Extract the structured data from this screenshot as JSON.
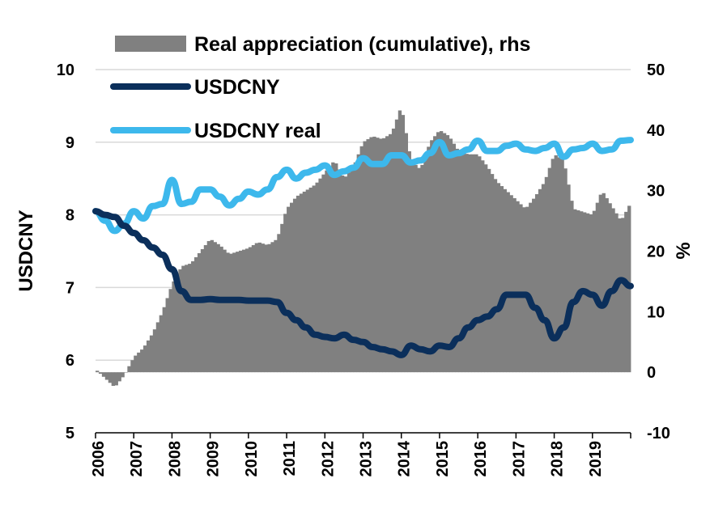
{
  "chart_data": {
    "type": "bar+line",
    "title": "",
    "x_ticks": [
      "2006",
      "2007",
      "2008",
      "2009",
      "2010",
      "2011",
      "2012",
      "2013",
      "2014",
      "2015",
      "2016",
      "2017",
      "2018",
      "2019"
    ],
    "x_range": [
      2006.0,
      2020.0
    ],
    "ylabel_left": "USDCNY",
    "ylabel_right": "%",
    "ylim_left": [
      5,
      10
    ],
    "ylim_right": [
      -10,
      50
    ],
    "yticks_left": [
      "5",
      "6",
      "7",
      "8",
      "9",
      "10"
    ],
    "yticks_right": [
      "-10",
      "0",
      "10",
      "20",
      "30",
      "40",
      "50"
    ],
    "grid": "horizontal",
    "legend_position": "top",
    "colors": {
      "bars": "#808080",
      "usdcny": "#0b2f5b",
      "usdcny_real": "#3db8ec"
    },
    "series": [
      {
        "name": "Real appreciation (cumulative), rhs",
        "kind": "bar",
        "axis": "right",
        "x": [
          2006.0,
          2006.25,
          2006.5,
          2006.75,
          2007.0,
          2007.25,
          2007.5,
          2007.75,
          2008.0,
          2008.25,
          2008.5,
          2008.75,
          2009.0,
          2009.25,
          2009.5,
          2009.75,
          2010.0,
          2010.25,
          2010.5,
          2010.75,
          2011.0,
          2011.25,
          2011.5,
          2011.75,
          2012.0,
          2012.25,
          2012.5,
          2012.75,
          2013.0,
          2013.25,
          2013.5,
          2013.75,
          2014.0,
          2014.25,
          2014.5,
          2014.75,
          2015.0,
          2015.25,
          2015.5,
          2015.75,
          2016.0,
          2016.25,
          2016.5,
          2016.75,
          2017.0,
          2017.25,
          2017.5,
          2017.75,
          2018.0,
          2018.25,
          2018.5,
          2018.75,
          2019.0,
          2019.25,
          2019.5,
          2019.75,
          2020.0
        ],
        "y": [
          0.5,
          -1.0,
          -2.5,
          -0.5,
          2.5,
          4.0,
          6.5,
          10.0,
          14.5,
          17.5,
          18.0,
          20.0,
          22.0,
          21.0,
          19.5,
          20.0,
          20.5,
          21.5,
          21.0,
          22.0,
          27.0,
          29.0,
          30.0,
          31.0,
          33.0,
          35.0,
          32.0,
          34.0,
          38.0,
          39.0,
          38.5,
          39.5,
          44.0,
          35.0,
          33.5,
          38.0,
          40.0,
          39.0,
          36.5,
          36.0,
          36.0,
          34.0,
          31.5,
          30.0,
          28.5,
          27.0,
          29.0,
          31.5,
          36.0,
          35.0,
          27.0,
          26.5,
          26.0,
          30.0,
          27.5,
          25.0,
          28.0
        ]
      },
      {
        "name": "USDCNY",
        "kind": "line",
        "axis": "left",
        "x": [
          2006.0,
          2006.25,
          2006.5,
          2006.75,
          2007.0,
          2007.25,
          2007.5,
          2007.75,
          2008.0,
          2008.25,
          2008.5,
          2008.75,
          2009.0,
          2009.25,
          2009.5,
          2009.75,
          2010.0,
          2010.25,
          2010.5,
          2010.75,
          2011.0,
          2011.25,
          2011.5,
          2011.75,
          2012.0,
          2012.25,
          2012.5,
          2012.75,
          2013.0,
          2013.25,
          2013.5,
          2013.75,
          2014.0,
          2014.25,
          2014.5,
          2014.75,
          2015.0,
          2015.25,
          2015.5,
          2015.75,
          2016.0,
          2016.25,
          2016.5,
          2016.75,
          2017.0,
          2017.25,
          2017.5,
          2017.75,
          2018.0,
          2018.25,
          2018.5,
          2018.75,
          2019.0,
          2019.25,
          2019.5,
          2019.75,
          2020.0
        ],
        "y": [
          8.05,
          8.0,
          7.97,
          7.85,
          7.75,
          7.65,
          7.55,
          7.45,
          7.25,
          6.95,
          6.83,
          6.83,
          6.84,
          6.83,
          6.83,
          6.83,
          6.82,
          6.82,
          6.82,
          6.8,
          6.65,
          6.55,
          6.45,
          6.35,
          6.32,
          6.3,
          6.35,
          6.28,
          6.25,
          6.18,
          6.15,
          6.12,
          6.07,
          6.2,
          6.15,
          6.12,
          6.2,
          6.18,
          6.3,
          6.45,
          6.55,
          6.6,
          6.7,
          6.9,
          6.9,
          6.9,
          6.72,
          6.55,
          6.3,
          6.45,
          6.8,
          6.95,
          6.9,
          6.75,
          6.95,
          7.1,
          7.02
        ]
      },
      {
        "name": "USDCNY real",
        "kind": "line",
        "axis": "left",
        "x": [
          2006.0,
          2006.25,
          2006.5,
          2006.75,
          2007.0,
          2007.25,
          2007.5,
          2007.75,
          2008.0,
          2008.25,
          2008.5,
          2008.75,
          2009.0,
          2009.25,
          2009.5,
          2009.75,
          2010.0,
          2010.25,
          2010.5,
          2010.75,
          2011.0,
          2011.25,
          2011.5,
          2011.75,
          2012.0,
          2012.25,
          2012.5,
          2012.75,
          2013.0,
          2013.25,
          2013.5,
          2013.75,
          2014.0,
          2014.25,
          2014.5,
          2014.75,
          2015.0,
          2015.25,
          2015.5,
          2015.75,
          2016.0,
          2016.25,
          2016.5,
          2016.75,
          2017.0,
          2017.25,
          2017.5,
          2017.75,
          2018.0,
          2018.25,
          2018.5,
          2018.75,
          2019.0,
          2019.25,
          2019.5,
          2019.75,
          2020.0
        ],
        "y": [
          8.05,
          7.92,
          7.78,
          7.88,
          8.05,
          7.95,
          8.12,
          8.15,
          8.48,
          8.15,
          8.18,
          8.35,
          8.35,
          8.25,
          8.13,
          8.22,
          8.32,
          8.28,
          8.35,
          8.52,
          8.62,
          8.5,
          8.58,
          8.62,
          8.68,
          8.55,
          8.6,
          8.65,
          8.78,
          8.7,
          8.7,
          8.82,
          8.82,
          8.72,
          8.75,
          8.85,
          9.0,
          8.82,
          8.85,
          8.9,
          9.02,
          8.88,
          8.88,
          8.95,
          8.98,
          8.9,
          8.88,
          8.92,
          8.98,
          8.8,
          8.9,
          8.92,
          8.98,
          8.88,
          8.9,
          9.02,
          9.03
        ]
      }
    ]
  }
}
